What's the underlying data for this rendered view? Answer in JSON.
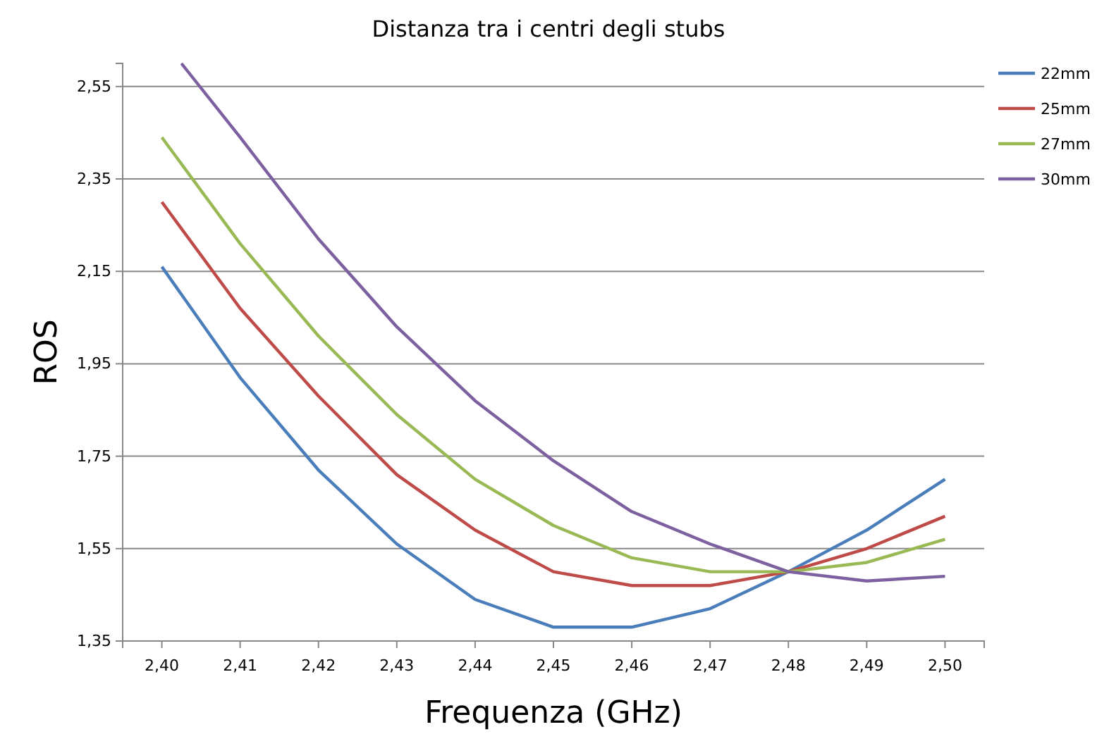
{
  "chart_data": {
    "type": "line",
    "title": "Distanza tra i centri degli stubs",
    "xlabel": "Frequenza (GHz)",
    "ylabel": "ROS",
    "x": [
      2.4,
      2.41,
      2.42,
      2.43,
      2.44,
      2.45,
      2.46,
      2.47,
      2.48,
      2.49,
      2.5
    ],
    "xlim": [
      2.395,
      2.505
    ],
    "xticks": [
      {
        "value": 2.4,
        "label": "2,40"
      },
      {
        "value": 2.41,
        "label": "2,41"
      },
      {
        "value": 2.42,
        "label": "2,42"
      },
      {
        "value": 2.43,
        "label": "2,43"
      },
      {
        "value": 2.44,
        "label": "2,44"
      },
      {
        "value": 2.45,
        "label": "2,45"
      },
      {
        "value": 2.46,
        "label": "2,46"
      },
      {
        "value": 2.47,
        "label": "2,47"
      },
      {
        "value": 2.48,
        "label": "2,48"
      },
      {
        "value": 2.49,
        "label": "2,49"
      },
      {
        "value": 2.5,
        "label": "2,50"
      }
    ],
    "ylim": [
      1.35,
      2.6
    ],
    "yticks": [
      {
        "value": 1.35,
        "label": "1,35"
      },
      {
        "value": 1.55,
        "label": "1,55"
      },
      {
        "value": 1.75,
        "label": "1,75"
      },
      {
        "value": 1.95,
        "label": "1,95"
      },
      {
        "value": 2.15,
        "label": "2,15"
      },
      {
        "value": 2.35,
        "label": "2,35"
      },
      {
        "value": 2.55,
        "label": "2,55"
      }
    ],
    "grid": "y",
    "legend": "right",
    "marker": "none",
    "line_style": "solid",
    "series": [
      {
        "name": "22mm",
        "color": "#4a7ebb",
        "values": [
          2.16,
          1.92,
          1.72,
          1.56,
          1.44,
          1.38,
          1.38,
          1.42,
          1.5,
          1.59,
          1.7
        ]
      },
      {
        "name": "25mm",
        "color": "#be4b48",
        "values": [
          2.3,
          2.07,
          1.88,
          1.71,
          1.59,
          1.5,
          1.47,
          1.47,
          1.5,
          1.55,
          1.62
        ]
      },
      {
        "name": "27mm",
        "color": "#98b954",
        "values": [
          2.44,
          2.21,
          2.01,
          1.84,
          1.7,
          1.6,
          1.53,
          1.5,
          1.5,
          1.52,
          1.57
        ]
      },
      {
        "name": "30mm",
        "color": "#7d60a0",
        "x": [
          2.4025,
          2.41,
          2.42,
          2.43,
          2.44,
          2.45,
          2.46,
          2.47,
          2.48,
          2.49,
          2.5
        ],
        "values": [
          2.6,
          2.44,
          2.22,
          2.03,
          1.87,
          1.74,
          1.63,
          1.56,
          1.5,
          1.48,
          1.49
        ]
      }
    ]
  }
}
